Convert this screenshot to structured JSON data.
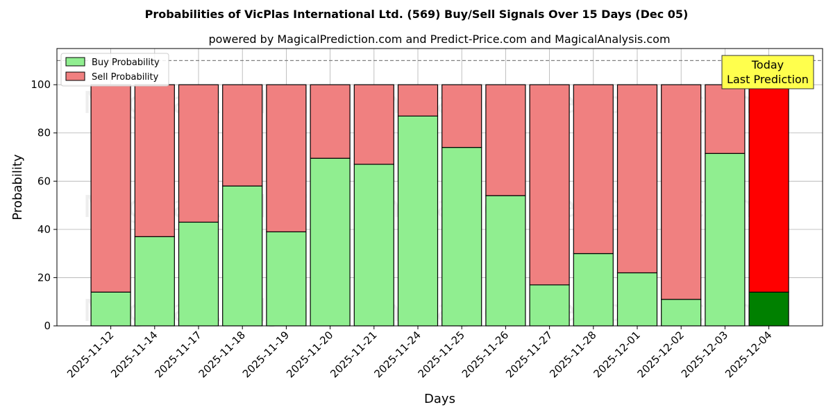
{
  "chart_data": {
    "type": "bar",
    "stacked": true,
    "title": "Probabilities of VicPlas International Ltd. (569) Buy/Sell Signals Over 15 Days (Dec 05)",
    "subtitle": "powered by MagicalPrediction.com and Predict-Price.com and MagicalAnalysis.com",
    "xlabel": "Days",
    "ylabel": "Probability",
    "ylim": [
      0,
      115
    ],
    "yticks": [
      0,
      20,
      40,
      60,
      80,
      100
    ],
    "grid": true,
    "legend_position": "top-left",
    "reference_line": 110,
    "categories": [
      "2025-11-12",
      "2025-11-14",
      "2025-11-17",
      "2025-11-18",
      "2025-11-19",
      "2025-11-20",
      "2025-11-21",
      "2025-11-24",
      "2025-11-25",
      "2025-11-26",
      "2025-11-27",
      "2025-11-28",
      "2025-12-01",
      "2025-12-02",
      "2025-12-03",
      "2025-12-04"
    ],
    "series": [
      {
        "name": "Buy Probability",
        "color": "#90ee90",
        "values": [
          14,
          37,
          43,
          58,
          39,
          69.5,
          67,
          87,
          74,
          54,
          17,
          30,
          22,
          11,
          71.5,
          14
        ]
      },
      {
        "name": "Sell Probability",
        "color": "#f08080",
        "values": [
          86,
          63,
          57,
          42,
          61,
          30.5,
          33,
          13,
          26,
          46,
          83,
          70,
          78,
          89,
          28.5,
          86
        ]
      }
    ],
    "highlight": {
      "index": 15,
      "buy_color": "#008000",
      "sell_color": "#ff0000"
    },
    "annotation": {
      "line1": "Today",
      "line2": "Last Prediction"
    },
    "watermarks": [
      "MagicalAnalysis.com",
      "MagicalPrediction.com"
    ]
  }
}
